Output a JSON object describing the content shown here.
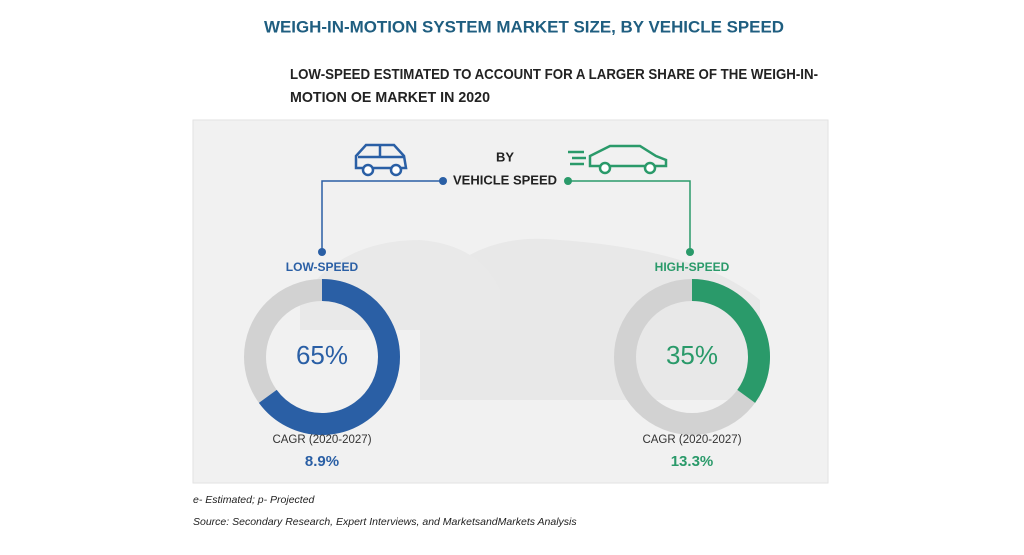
{
  "title": "WEIGH-IN-MOTION SYSTEM MARKET SIZE, BY VEHICLE SPEED",
  "subtitle": [
    "LOW-SPEED ESTIMATED TO ACCOUNT FOR A LARGER SHARE OF THE WEIGH-IN-",
    "MOTION OE MARKET IN 2020"
  ],
  "center_label": [
    "BY",
    "VEHICLE SPEED"
  ],
  "chart_data": [
    {
      "type": "donut",
      "title": "LOW-SPEED",
      "values": [
        65
      ],
      "value_labels": [
        "65%"
      ],
      "color": "#2a5fa5",
      "track_color": "#d2d2d2",
      "cagr_label": "CAGR (2020-2027)",
      "cagr": "8.9%"
    },
    {
      "type": "donut",
      "title": "HIGH-SPEED",
      "values": [
        35
      ],
      "value_labels": [
        "35%"
      ],
      "color": "#2a9a6a",
      "track_color": "#d2d2d2",
      "cagr_label": "CAGR (2020-2027)",
      "cagr": "13.3%"
    }
  ],
  "footnotes": [
    "e- Estimated; p- Projected",
    "Source: Secondary Research, Expert Interviews, and MarketsandMarkets Analysis"
  ]
}
